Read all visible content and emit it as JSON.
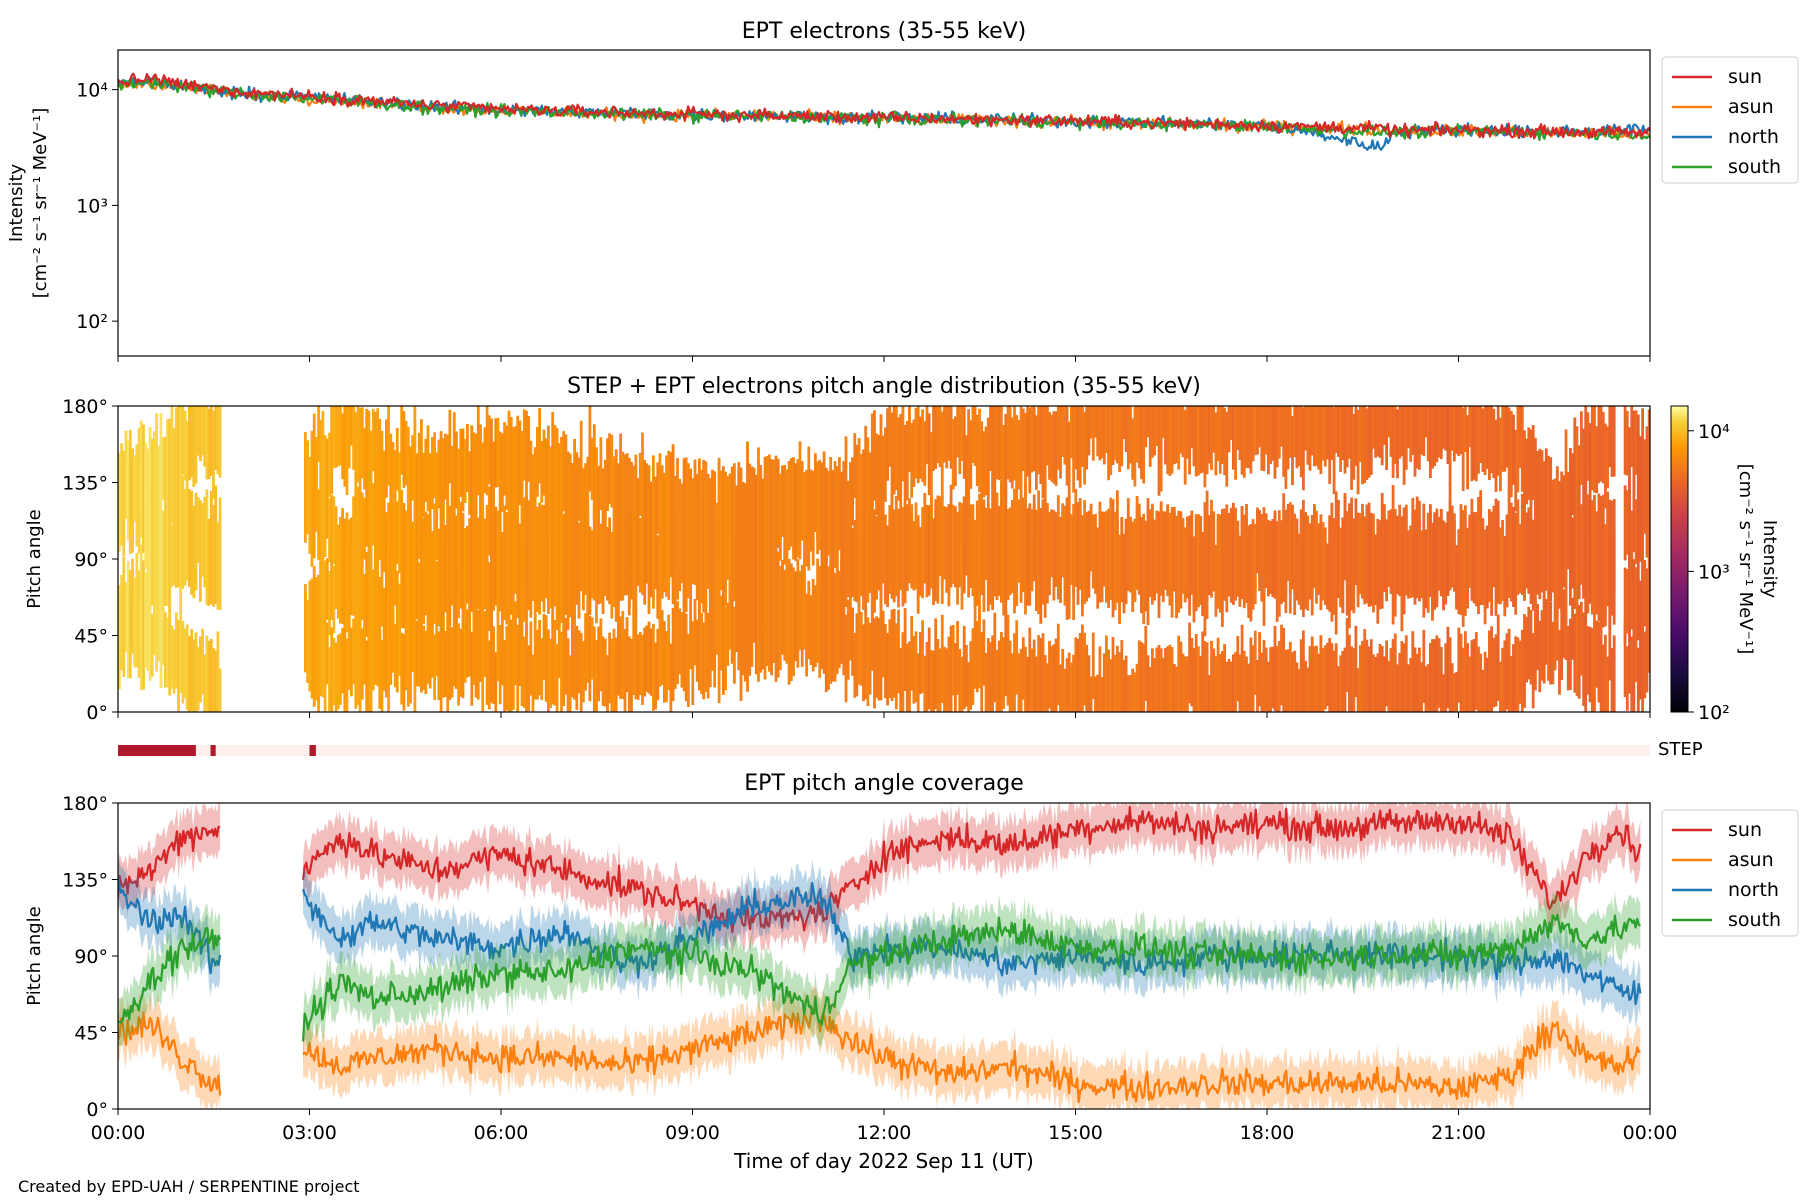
{
  "credit": "Created by EPD-UAH / SERPENTINE project",
  "chart_data": [
    {
      "type": "line",
      "title": "EPT electrons (35-55 keV)",
      "ylabel": "Intensity",
      "yunit": "[cm⁻² s⁻¹ sr⁻¹ MeV⁻¹]",
      "yscale": "log",
      "ylim": [
        50,
        22000
      ],
      "yticks": [
        {
          "value": 100,
          "label": "10²"
        },
        {
          "value": 1000,
          "label": "10³"
        },
        {
          "value": 10000,
          "label": "10⁴"
        }
      ],
      "xlim_hours": [
        0,
        24
      ],
      "legend_position": "outside-right-top",
      "series": [
        {
          "name": "sun",
          "color": "#d62728",
          "x": [
            0,
            0.5,
            1,
            2,
            3,
            4,
            5,
            6,
            8,
            10,
            12,
            14,
            16,
            18,
            19.8,
            20,
            21,
            22,
            23,
            24
          ],
          "values": [
            11500,
            12500,
            11000,
            9500,
            8800,
            8000,
            7200,
            6800,
            6300,
            6000,
            5700,
            5500,
            5200,
            4900,
            4600,
            4400,
            4500,
            4400,
            4300,
            4200
          ]
        },
        {
          "name": "asun",
          "color": "#ff7f0e",
          "x": [
            0,
            0.5,
            1,
            2,
            3,
            4,
            5,
            6,
            8,
            10,
            12,
            14,
            16,
            18,
            19.8,
            20,
            21,
            22,
            23,
            24
          ],
          "values": [
            11000,
            11500,
            10500,
            9000,
            8500,
            7700,
            7000,
            6600,
            6100,
            5900,
            5600,
            5400,
            5100,
            4800,
            4500,
            4300,
            4400,
            4300,
            4200,
            4100
          ]
        },
        {
          "name": "north",
          "color": "#1f77b4",
          "x": [
            0,
            0.5,
            1,
            2,
            3,
            4,
            5,
            6,
            8,
            10,
            12,
            14,
            16,
            18,
            19.8,
            20,
            21,
            22,
            23,
            24
          ],
          "values": [
            11200,
            12000,
            10800,
            9300,
            8600,
            7900,
            7100,
            6700,
            6200,
            6000,
            5700,
            5500,
            5200,
            4900,
            3100,
            4400,
            4500,
            4400,
            4400,
            4500
          ]
        },
        {
          "name": "south",
          "color": "#2ca02c",
          "x": [
            0,
            0.5,
            1,
            2,
            3,
            4,
            5,
            6,
            8,
            10,
            12,
            14,
            16,
            18,
            19.8,
            20,
            21,
            22,
            23,
            24
          ],
          "values": [
            11000,
            11800,
            10600,
            9100,
            8400,
            7700,
            6900,
            6600,
            6100,
            5900,
            5600,
            5400,
            5100,
            4800,
            4300,
            4300,
            4400,
            4300,
            4200,
            4100
          ]
        }
      ]
    },
    {
      "type": "heatmap",
      "title": "STEP + EPT electrons pitch angle distribution (35-55 keV)",
      "ylabel": "Pitch angle",
      "ylim": [
        0,
        180
      ],
      "yticks": [
        "0°",
        "45°",
        "90°",
        "135°",
        "180°"
      ],
      "xlim_hours": [
        0,
        24
      ],
      "data_gap_hours": [
        1.6,
        2.9
      ],
      "colorbar": {
        "label": "Intensity",
        "unit": "[cm⁻² s⁻¹ sr⁻¹ MeV⁻¹]",
        "scale": "log",
        "range": [
          100,
          15000
        ],
        "colormap": "inferno",
        "ticks": [
          {
            "value": 100,
            "label": "10²"
          },
          {
            "value": 1000,
            "label": "10³"
          },
          {
            "value": 10000,
            "label": "10⁴"
          }
        ]
      },
      "step_indicator": {
        "label": "STEP",
        "on_color": "#b2182b",
        "off_color": "#fdf0ec",
        "on_intervals_hours": [
          [
            0,
            1.22
          ],
          [
            1.45,
            1.53
          ],
          [
            3.0,
            3.1
          ]
        ]
      }
    },
    {
      "type": "line",
      "title": "EPT pitch angle coverage",
      "ylabel": "Pitch angle",
      "ylim": [
        0,
        180
      ],
      "yticks": [
        "0°",
        "45°",
        "90°",
        "135°",
        "180°"
      ],
      "xlabel": "Time of day 2022 Sep 11 (UT)",
      "xticks": [
        "00:00",
        "03:00",
        "06:00",
        "09:00",
        "12:00",
        "15:00",
        "18:00",
        "21:00",
        "00:00"
      ],
      "xlim_hours": [
        0,
        24
      ],
      "data_gap_hours": [
        1.6,
        2.9
      ],
      "legend_position": "outside-right-top",
      "series": [
        {
          "name": "sun",
          "color": "#d62728",
          "x": [
            0,
            0.5,
            1,
            1.5,
            2.9,
            3.5,
            4,
            5,
            6,
            7,
            8,
            9,
            10,
            11,
            11.5,
            12,
            13,
            14,
            15,
            16,
            17,
            18,
            19,
            20,
            21,
            21.8,
            22.5,
            23,
            23.5,
            24
          ],
          "values": [
            130,
            140,
            160,
            165,
            140,
            160,
            150,
            140,
            150,
            140,
            130,
            120,
            110,
            115,
            130,
            150,
            160,
            155,
            165,
            170,
            165,
            168,
            165,
            168,
            170,
            160,
            120,
            150,
            165,
            145
          ]
        },
        {
          "name": "asun",
          "color": "#ff7f0e",
          "x": [
            0,
            0.5,
            1,
            1.5,
            2.9,
            3.5,
            4,
            5,
            6,
            7,
            8,
            9,
            10,
            11,
            11.5,
            12,
            13,
            14,
            15,
            16,
            17,
            18,
            19,
            20,
            21,
            21.8,
            22.5,
            23,
            23.5,
            24
          ],
          "values": [
            45,
            50,
            30,
            15,
            35,
            25,
            30,
            35,
            30,
            30,
            25,
            35,
            45,
            55,
            40,
            30,
            20,
            25,
            15,
            12,
            15,
            15,
            15,
            15,
            12,
            20,
            50,
            30,
            25,
            35
          ]
        },
        {
          "name": "north",
          "color": "#1f77b4",
          "x": [
            0,
            0.5,
            1,
            1.5,
            2.9,
            3.5,
            4,
            5,
            6,
            7,
            8,
            9,
            10,
            11,
            11.5,
            12,
            13,
            14,
            15,
            16,
            17,
            18,
            19,
            20,
            21,
            21.8,
            22.5,
            23,
            23.5,
            24
          ],
          "values": [
            130,
            110,
            115,
            85,
            125,
            100,
            110,
            100,
            95,
            105,
            85,
            100,
            120,
            125,
            90,
            95,
            95,
            85,
            90,
            85,
            90,
            90,
            92,
            90,
            90,
            85,
            90,
            80,
            70,
            65
          ]
        },
        {
          "name": "south",
          "color": "#2ca02c",
          "x": [
            0,
            0.5,
            1,
            1.5,
            2.9,
            3.5,
            4,
            5,
            6,
            7,
            8,
            9,
            10,
            11,
            11.5,
            12,
            13,
            14,
            15,
            16,
            17,
            18,
            19,
            20,
            21,
            21.8,
            22.5,
            23,
            23.5,
            24
          ],
          "values": [
            50,
            75,
            95,
            100,
            50,
            75,
            65,
            70,
            80,
            80,
            95,
            90,
            80,
            55,
            85,
            90,
            100,
            105,
            95,
            95,
            90,
            90,
            88,
            92,
            90,
            95,
            110,
            100,
            105,
            115
          ]
        }
      ]
    }
  ]
}
